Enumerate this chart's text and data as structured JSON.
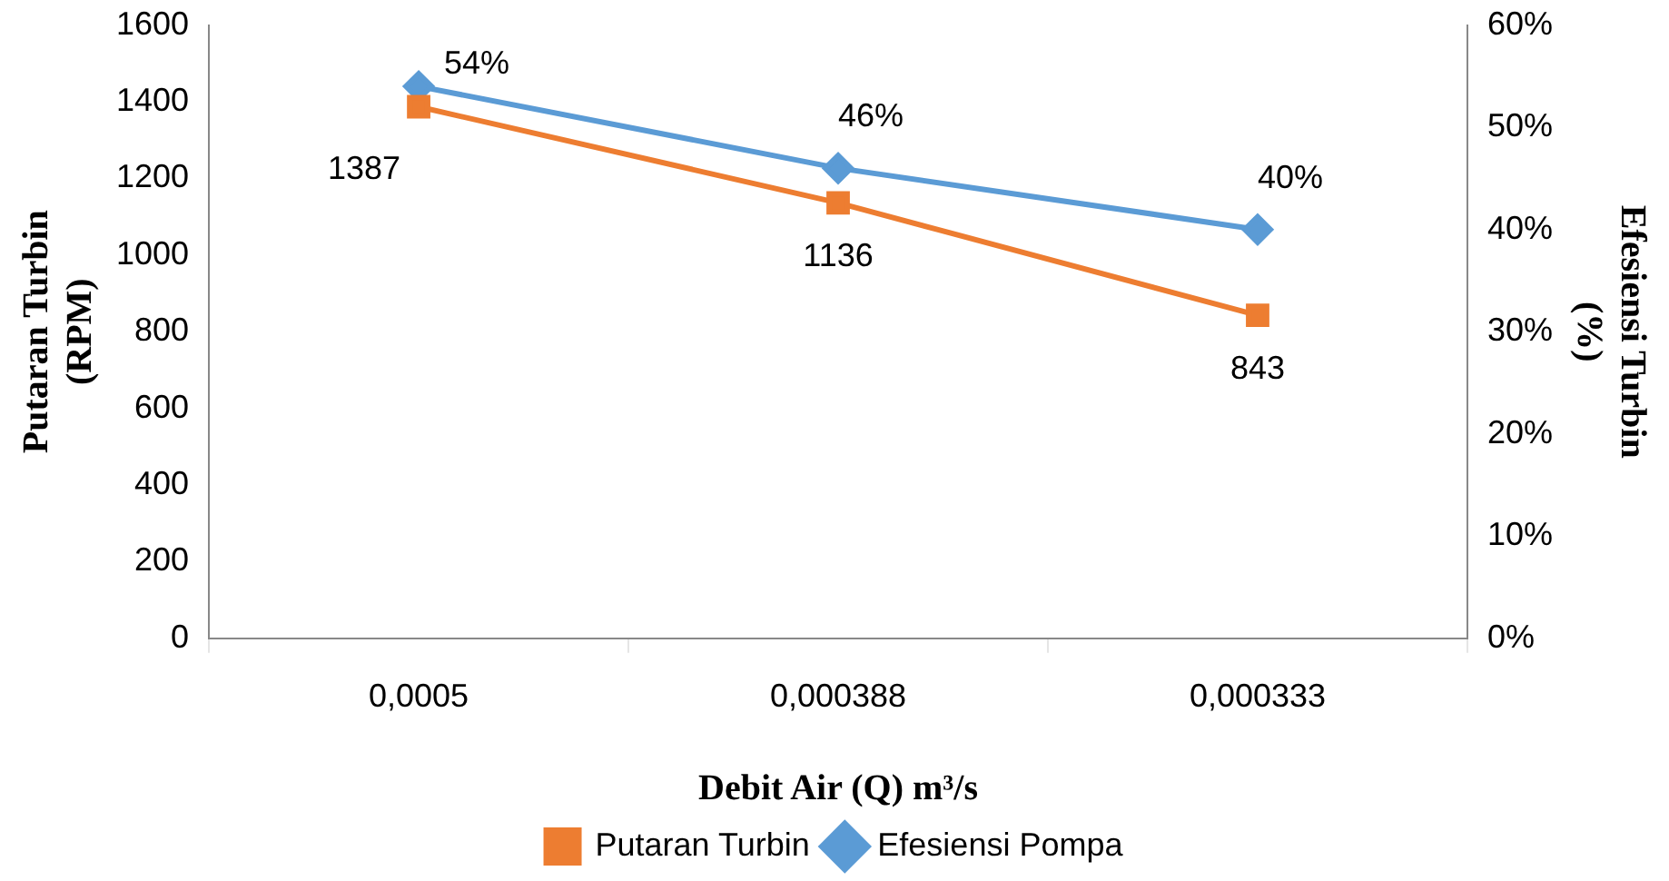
{
  "chart_data": {
    "type": "line",
    "xlabel": "Debit Air (Q) m³/s",
    "ylabel": "Putaran Turbin\n(RPM)",
    "y2label": "Efesiensi Turbin\n(%)",
    "categories": [
      "0,0005",
      "0,000388",
      "0,000333"
    ],
    "series": [
      {
        "name": "Putaran Turbin",
        "color": "#ed7d31",
        "marker": "square",
        "values": [
          1387,
          1136,
          843
        ],
        "value_labels": [
          "1387",
          "1136",
          "843"
        ]
      },
      {
        "name": "Efesiensi Pompa",
        "color": "#5b9bd5",
        "marker": "diamond",
        "axis": "y2",
        "values": [
          54,
          46,
          40
        ],
        "value_labels": [
          "54%",
          "46%",
          "40%"
        ]
      }
    ],
    "ylim": [
      0,
      1600
    ],
    "yticks": [
      0,
      200,
      400,
      600,
      800,
      1000,
      1200,
      1400,
      1600
    ],
    "y2lim": [
      0,
      60
    ],
    "y2ticks": [
      {
        "value": 0,
        "label": "0%"
      },
      {
        "value": 10,
        "label": "10%"
      },
      {
        "value": 20,
        "label": "20%"
      },
      {
        "value": 30,
        "label": "30%"
      },
      {
        "value": 40,
        "label": "40%"
      },
      {
        "value": 50,
        "label": "50%"
      },
      {
        "value": 60,
        "label": "60%"
      }
    ],
    "grid": false,
    "legend": "bottom",
    "line_style": "solid"
  }
}
